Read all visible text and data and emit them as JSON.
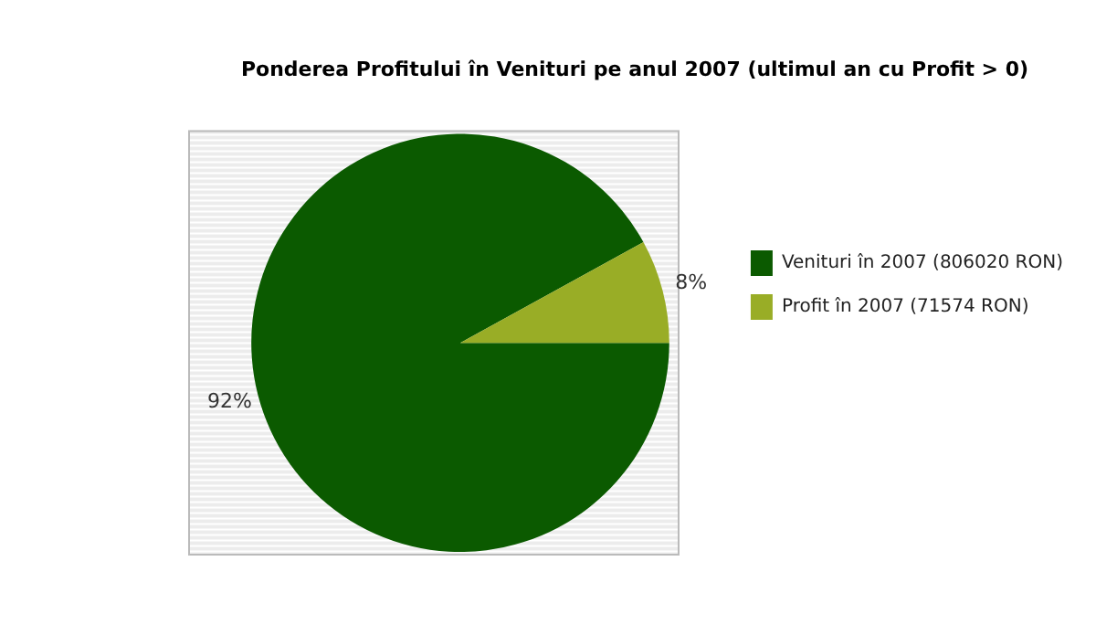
{
  "chart_data": {
    "type": "pie",
    "title": "Ponderea Profitului în Venituri pe anul 2007 (ultimul an cu Profit > 0)",
    "categories": [
      "Venituri în 2007 (806020 RON)",
      "Profit în 2007 (71574 RON)"
    ],
    "values": [
      92,
      8
    ],
    "colors": [
      "#0b5a00",
      "#99ad26"
    ],
    "value_labels": [
      "92%",
      "8%"
    ],
    "legend": "right"
  }
}
